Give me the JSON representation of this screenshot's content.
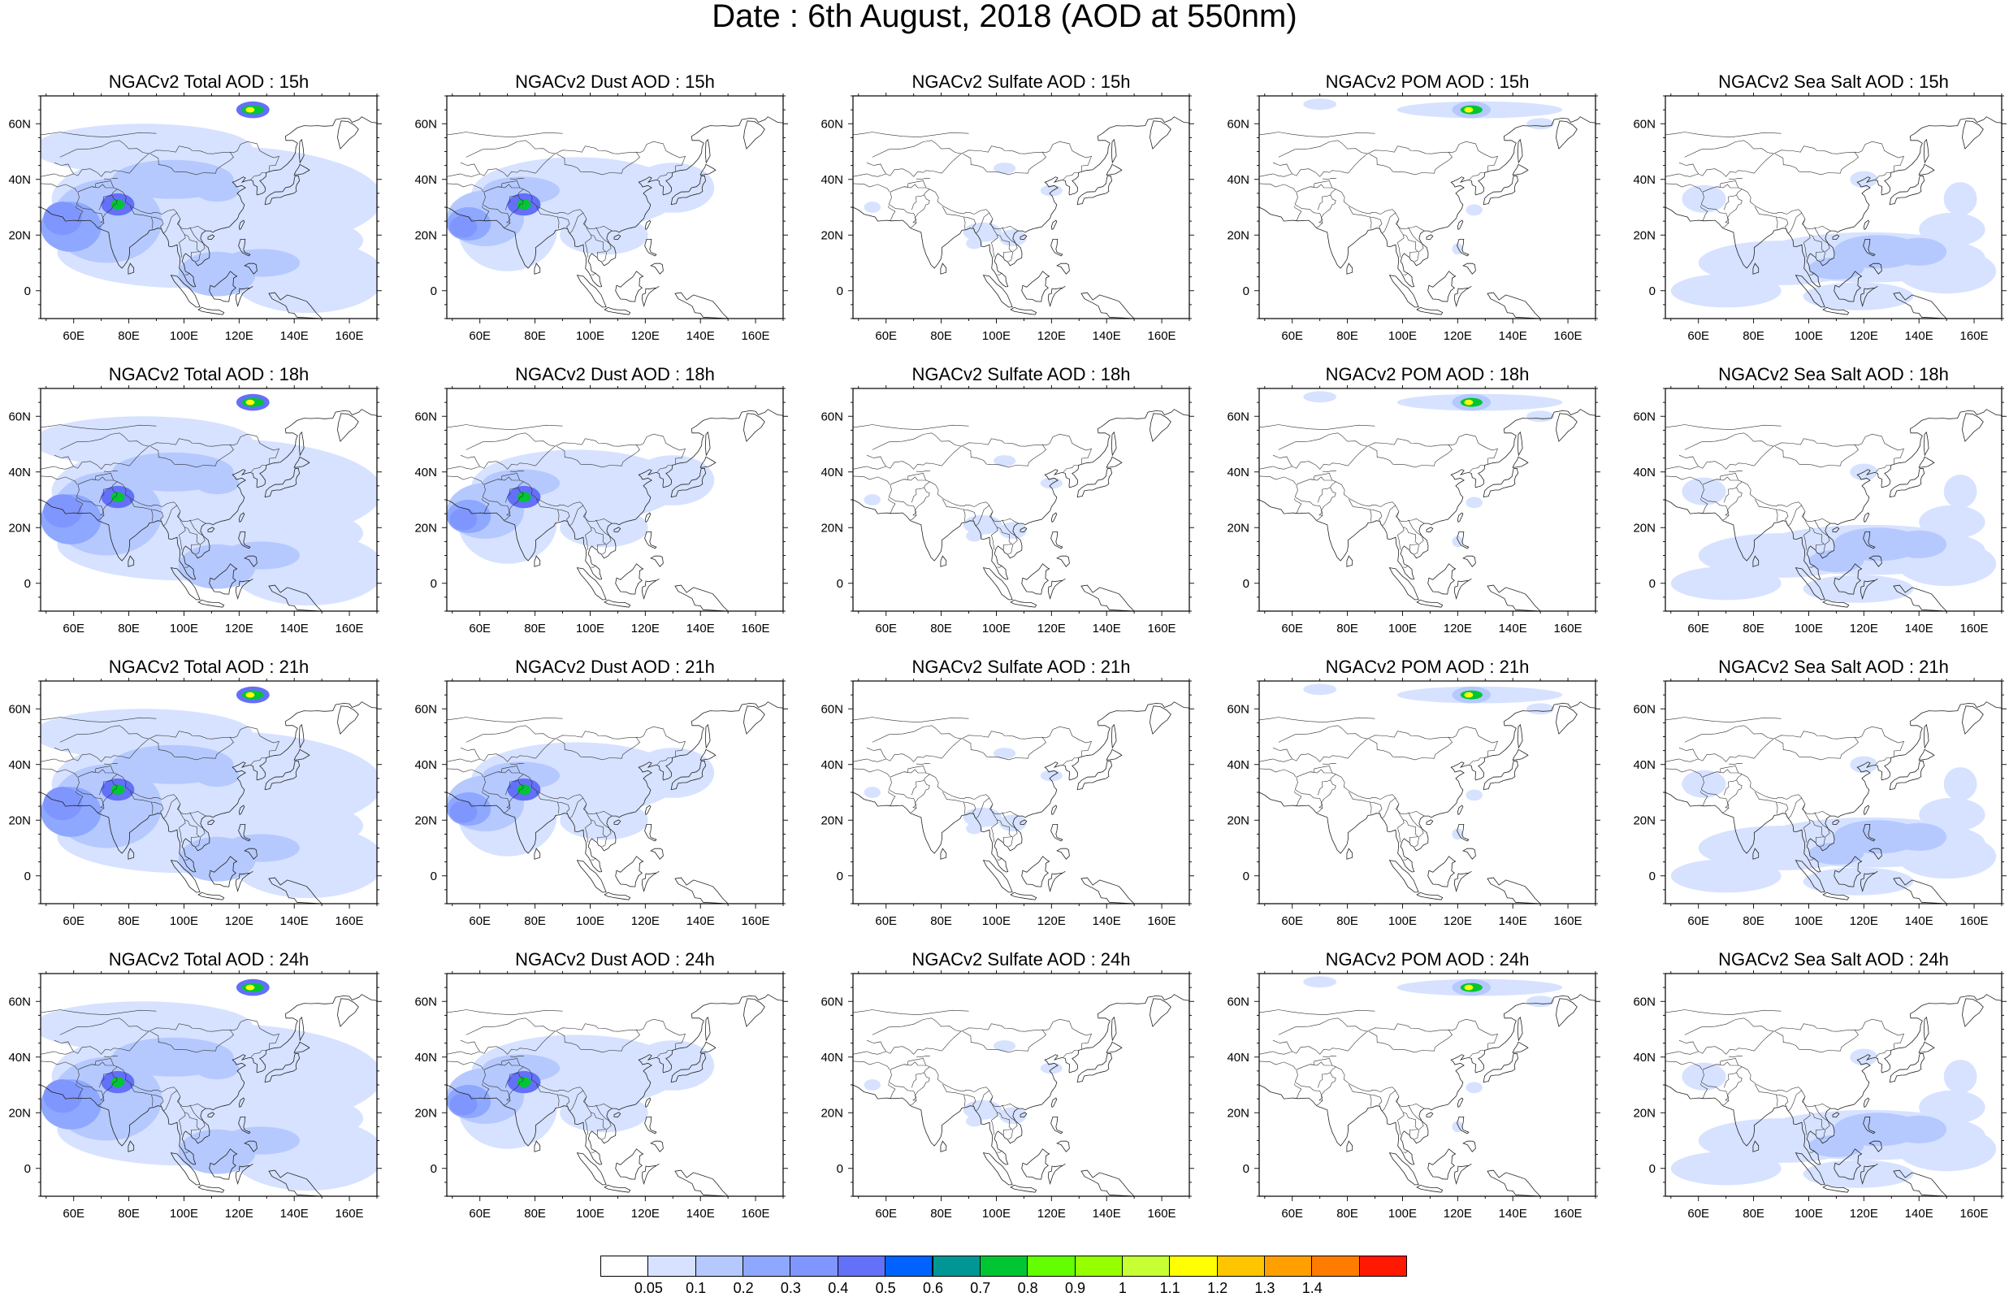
{
  "title": "Date : 6th August, 2018 (AOD at 550nm)",
  "panels": [
    {
      "title": "NGACv2 Total AOD : 15h",
      "species": "total"
    },
    {
      "title": "NGACv2 Dust AOD : 15h",
      "species": "dust"
    },
    {
      "title": "NGACv2 Sulfate AOD : 15h",
      "species": "sulfate"
    },
    {
      "title": "NGACv2 POM AOD : 15h",
      "species": "pom"
    },
    {
      "title": "NGACv2 Sea Salt AOD : 15h",
      "species": "seasalt"
    },
    {
      "title": "NGACv2 Total AOD : 18h",
      "species": "total"
    },
    {
      "title": "NGACv2 Dust AOD : 18h",
      "species": "dust"
    },
    {
      "title": "NGACv2 Sulfate AOD : 18h",
      "species": "sulfate"
    },
    {
      "title": "NGACv2 POM AOD : 18h",
      "species": "pom"
    },
    {
      "title": "NGACv2 Sea Salt AOD : 18h",
      "species": "seasalt"
    },
    {
      "title": "NGACv2 Total AOD : 21h",
      "species": "total"
    },
    {
      "title": "NGACv2 Dust AOD : 21h",
      "species": "dust"
    },
    {
      "title": "NGACv2 Sulfate AOD : 21h",
      "species": "sulfate"
    },
    {
      "title": "NGACv2 POM AOD : 21h",
      "species": "pom"
    },
    {
      "title": "NGACv2 Sea Salt AOD : 21h",
      "species": "seasalt"
    },
    {
      "title": "NGACv2 Total AOD : 24h",
      "species": "total"
    },
    {
      "title": "NGACv2 Dust AOD : 24h",
      "species": "dust"
    },
    {
      "title": "NGACv2 Sulfate AOD : 24h",
      "species": "sulfate"
    },
    {
      "title": "NGACv2 POM AOD : 24h",
      "species": "pom"
    },
    {
      "title": "NGACv2 Sea Salt  AOD : 24h",
      "species": "seasalt"
    }
  ],
  "map": {
    "lon_range": [
      48,
      170
    ],
    "lat_range": [
      -10,
      70
    ],
    "lon_ticks": [
      "60E",
      "80E",
      "100E",
      "120E",
      "140E",
      "160E"
    ],
    "lat_ticks": [
      "0",
      "20N",
      "40N",
      "60N"
    ]
  },
  "colorbar": {
    "labels": [
      "0.05",
      "0.1",
      "0.2",
      "0.3",
      "0.4",
      "0.5",
      "0.6",
      "0.7",
      "0.8",
      "0.9",
      "1",
      "1.1",
      "1.2",
      "1.3",
      "1.4"
    ],
    "colors": [
      "#ffffff",
      "#d6e2ff",
      "#b5c9ff",
      "#8ea8ff",
      "#7f96ff",
      "#6370f8",
      "#0063ff",
      "#009696",
      "#00c633",
      "#63ff00",
      "#96ff00",
      "#c6ff33",
      "#ffff00",
      "#ffc600",
      "#ffa000",
      "#ff7c00",
      "#ff1900"
    ]
  }
}
